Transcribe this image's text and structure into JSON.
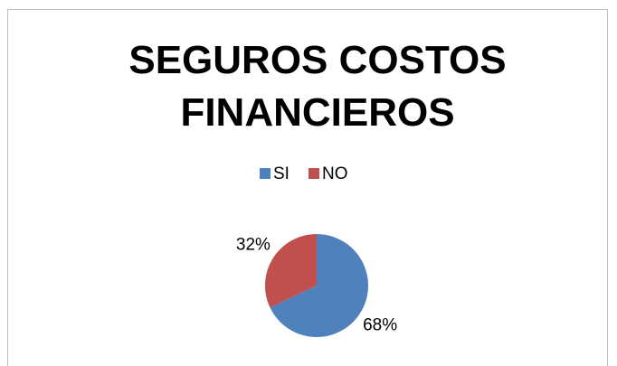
{
  "chart_data": {
    "type": "pie",
    "title": "SEGUROS COSTOS FINANCIEROS",
    "categories": [
      "SI",
      "NO"
    ],
    "values": [
      68,
      32
    ],
    "value_labels": [
      "68%",
      "32%"
    ],
    "colors": [
      "#4f81bd",
      "#c0504d"
    ],
    "legend": "top"
  }
}
